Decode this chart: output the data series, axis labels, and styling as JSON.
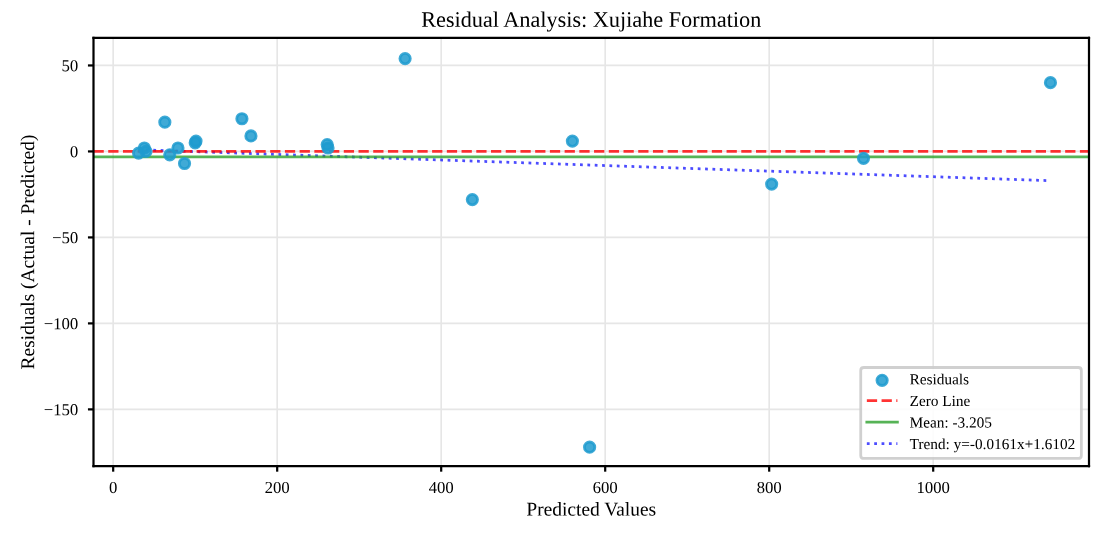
{
  "chart_data": {
    "type": "scatter",
    "title": "Residual Analysis: Xujiahe Formation",
    "xlabel": "Predicted Values",
    "ylabel": "Residuals (Actual - Predicted)",
    "series": [
      {
        "name": "Residuals",
        "type": "scatter",
        "color": "#1f9bcf",
        "marker": "circle",
        "x": [
          31,
          38,
          40,
          63,
          69,
          79,
          87,
          100,
          101,
          157,
          168,
          261,
          262,
          356,
          438,
          560,
          581,
          803,
          915,
          1143
        ],
        "values": [
          -1,
          2,
          0,
          17,
          -2,
          2,
          -7,
          5,
          6,
          19,
          9,
          4,
          2,
          54,
          -28,
          6,
          -172,
          -19,
          -4,
          40
        ]
      },
      {
        "name": "Trend: y=-0.0161x+1.6102",
        "type": "line",
        "color": "#0000ff",
        "line_style": "dotted",
        "x": [
          31,
          1143
        ],
        "values": [
          1,
          -17
        ]
      }
    ],
    "ref_lines": [
      {
        "axis": "y",
        "value": 0,
        "label": "Zero Line",
        "color": "#ff0000",
        "line_style": "dashed"
      },
      {
        "axis": "y",
        "value": -3.205,
        "label": "Mean: -3.205",
        "color": "#2ca02c",
        "line_style": "solid"
      }
    ],
    "xlim": [
      -24,
      1190
    ],
    "ylim": [
      -183,
      66
    ],
    "xticks": [
      0,
      200,
      400,
      600,
      800,
      1000
    ],
    "yticks": [
      -150,
      -100,
      -50,
      0,
      50
    ],
    "grid": true,
    "legend": "bottom right"
  }
}
